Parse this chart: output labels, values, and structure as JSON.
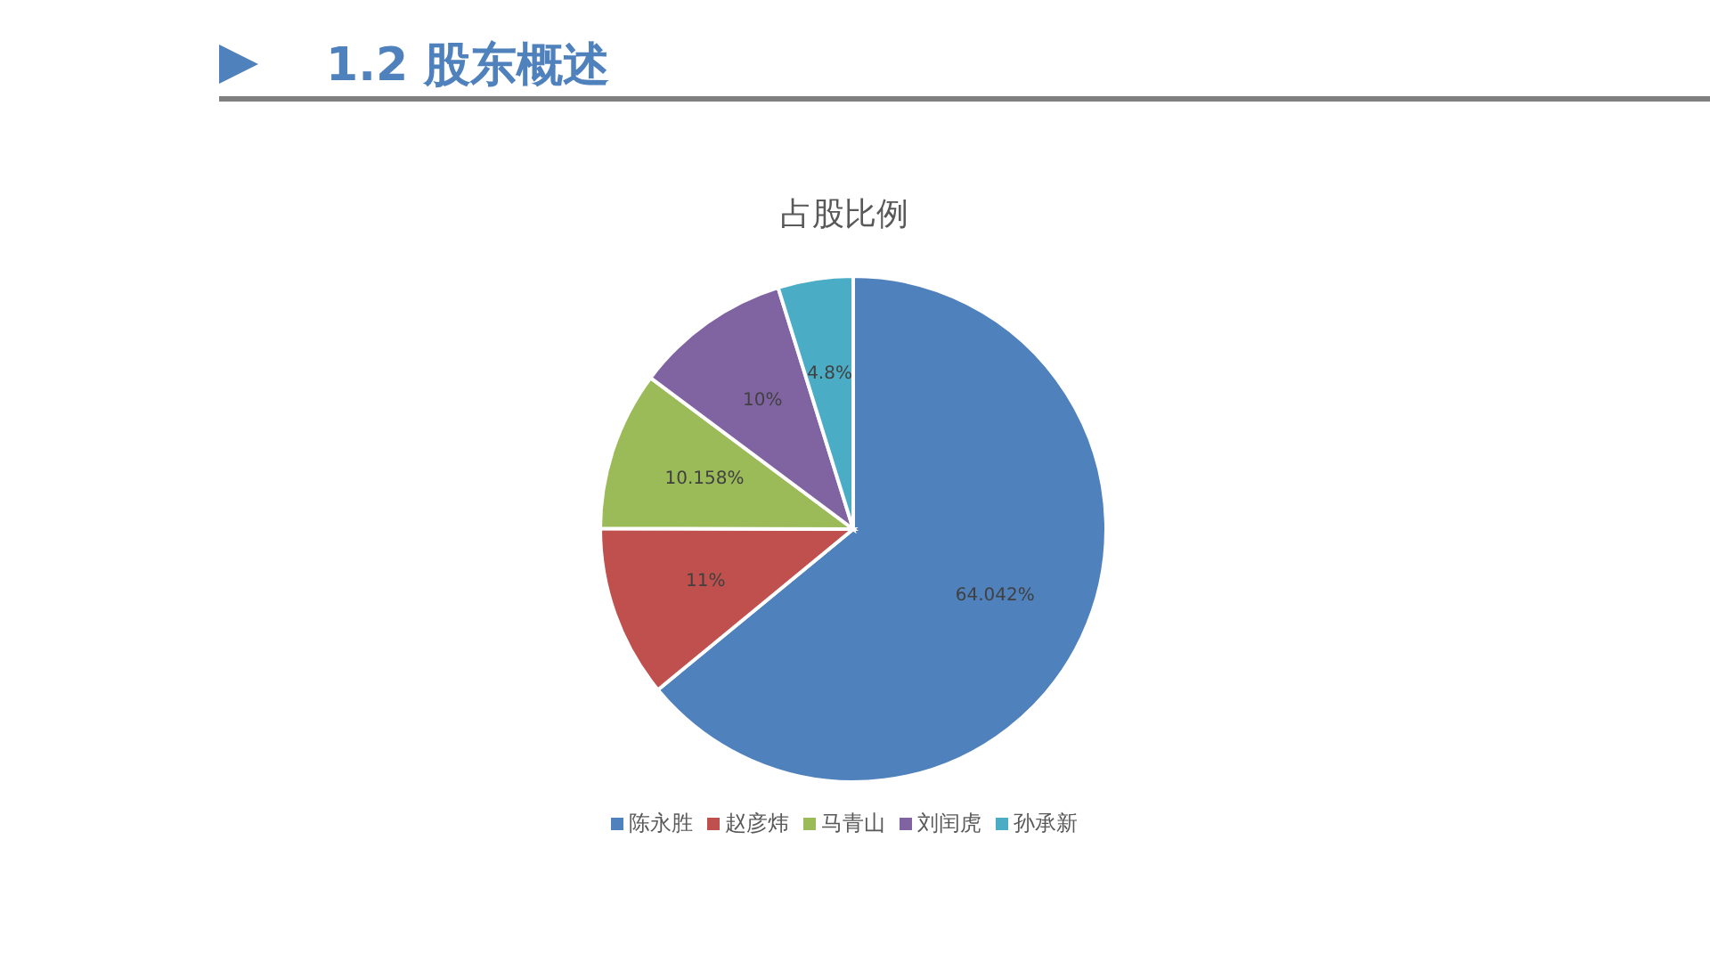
{
  "chart_data": {
    "type": "pie",
    "title": "1.2 股东概述",
    "subtitle": "占股比例",
    "categories": [
      "陈永胜",
      "赵彦炜",
      "马青山",
      "刘闰虎",
      "孙承新"
    ],
    "values": [
      64.042,
      11,
      10.158,
      10,
      4.8
    ],
    "value_labels": [
      "64.042%",
      "11%",
      "10.158%",
      "10%",
      "4.8%"
    ],
    "colors": [
      "#4f81bd",
      "#c0504d",
      "#9bbb59",
      "#8064a2",
      "#4bacc6"
    ],
    "legend": "bottom"
  }
}
